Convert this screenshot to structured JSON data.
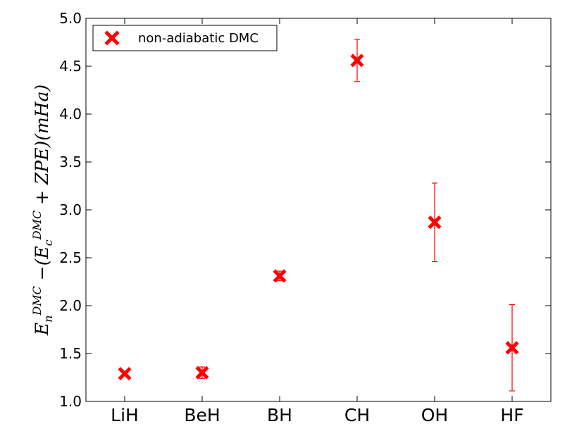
{
  "chart_data": {
    "type": "scatter",
    "categories": [
      "LiH",
      "BeH",
      "BH",
      "CH",
      "OH",
      "HF"
    ],
    "series": [
      {
        "name": "non-adiabatic DMC",
        "color": "#ff0000",
        "marker": "x",
        "values": [
          1.29,
          1.3,
          2.31,
          4.56,
          2.87,
          1.56
        ],
        "errors": [
          0.02,
          0.06,
          0.05,
          0.22,
          0.41,
          0.45
        ]
      }
    ],
    "ylim": [
      1.0,
      5.0
    ],
    "yticks": [
      "1.0",
      "1.5",
      "2.0",
      "2.5",
      "3.0",
      "3.5",
      "4.0",
      "4.5",
      "5.0"
    ],
    "ylabel": {
      "E": "E",
      "n": "n",
      "DMC": "DMC",
      "minus": " −(",
      "Ec": "E",
      "c": "c",
      "DMC2": "DMC",
      "rest": " + ZPE)(mHa)"
    },
    "legend_position": "upper-left",
    "grid": false
  }
}
